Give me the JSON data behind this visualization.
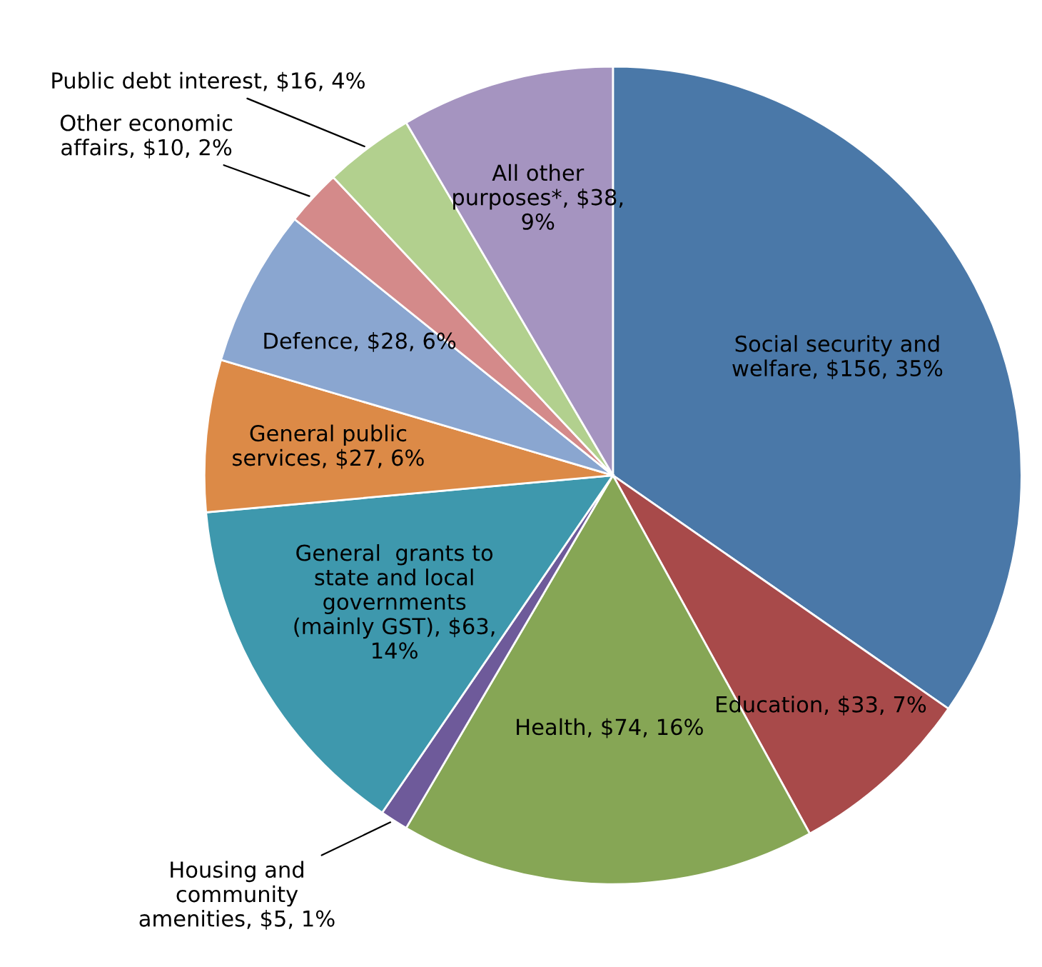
{
  "chart_data": {
    "type": "pie",
    "categories": [
      "Social security and\nwelfare",
      "Education",
      "Health",
      "Housing and\ncommunity\namenities",
      "General  grants to\nstate and local\ngovernments\n(mainly GST)",
      "General public\nservices",
      "Defence",
      "Other economic\naffairs",
      "Public debt interest",
      "All other\npurposes*"
    ],
    "values": [
      156,
      33,
      74,
      5,
      63,
      27,
      28,
      10,
      16,
      38
    ],
    "value_labels": [
      "$156, 35%",
      "$33, 7%",
      "$74, 16%",
      "$5, 1%",
      "$63,\n14%",
      "$27, 6%",
      "$28, 6%",
      "$10, 2%",
      "$16, 4%",
      "$38,\n9%"
    ],
    "colors": [
      "#4a78a8",
      "#a84a4a",
      "#86a655",
      "#6e5a9a",
      "#3e98ad",
      "#dc8a47",
      "#8aa6d0",
      "#d48a8a",
      "#b2d08e",
      "#a594c0"
    ]
  }
}
